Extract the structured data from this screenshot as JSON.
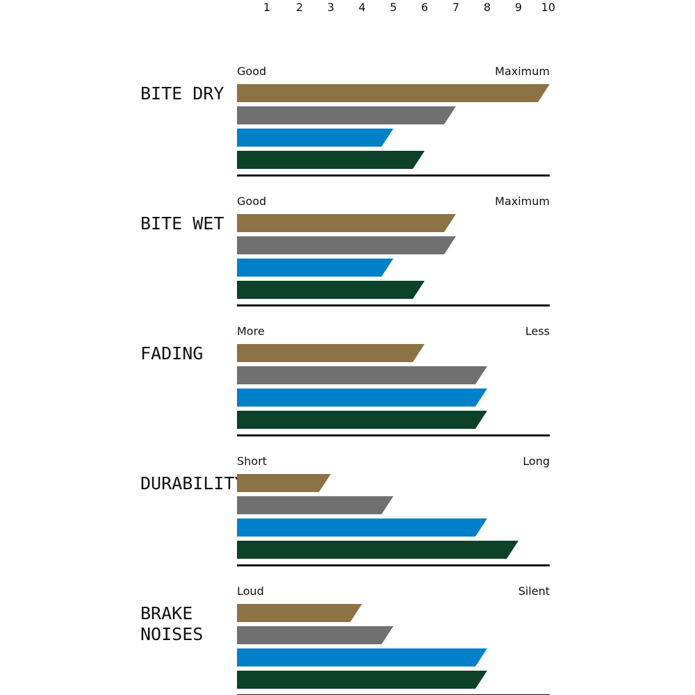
{
  "chart_data": {
    "type": "bar",
    "orientation": "horizontal",
    "x_ticks": [
      1,
      2,
      3,
      4,
      5,
      6,
      7,
      8,
      9,
      10
    ],
    "xlim": [
      0,
      10
    ],
    "grid": false,
    "legend": "none",
    "series_colors": [
      "#8c7345",
      "#707070",
      "#0080c8",
      "#0b4229"
    ],
    "panels": [
      {
        "label": [
          "BITE DRY"
        ],
        "min_label": "Good",
        "max_label": "Maximum",
        "values": [
          10,
          7,
          5,
          6
        ]
      },
      {
        "label": [
          "BITE WET"
        ],
        "min_label": "Good",
        "max_label": "Maximum",
        "values": [
          7,
          7,
          5,
          6
        ]
      },
      {
        "label": [
          "FADING"
        ],
        "min_label": "More",
        "max_label": "Less",
        "values": [
          6,
          8,
          8,
          8
        ]
      },
      {
        "label": [
          "DURABILITY"
        ],
        "min_label": "Short",
        "max_label": "Long",
        "values": [
          3,
          5,
          8,
          9
        ]
      },
      {
        "label": [
          "BRAKE",
          "NOISES"
        ],
        "min_label": "Loud",
        "max_label": "Silent",
        "values": [
          4,
          5,
          8,
          8
        ]
      }
    ]
  }
}
